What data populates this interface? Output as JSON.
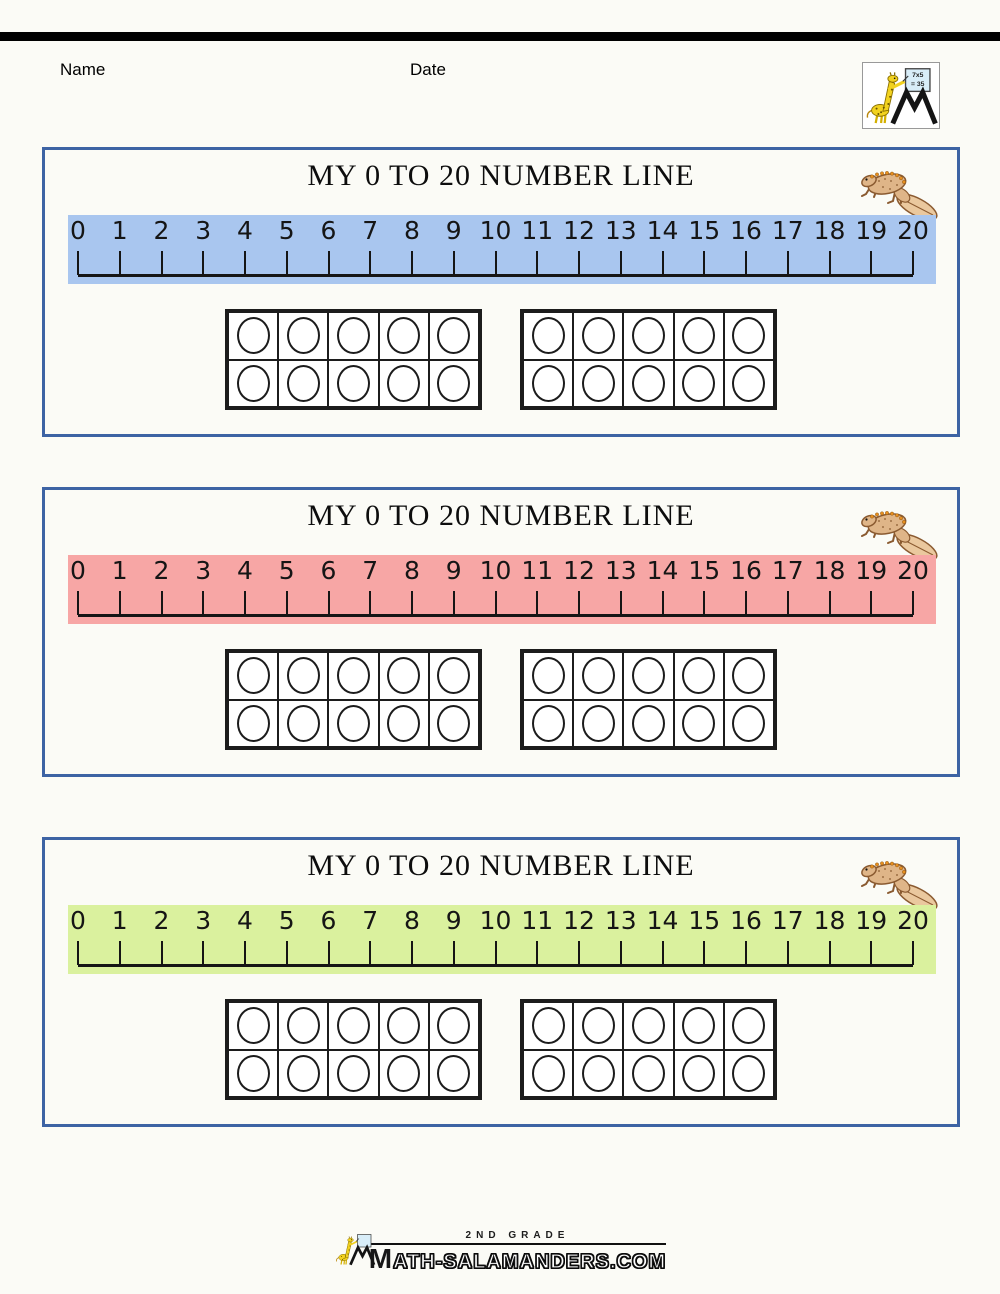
{
  "header": {
    "name_label": "Name",
    "date_label": "Date"
  },
  "logo": {
    "board_line1": "7x5",
    "board_line2": "= 35"
  },
  "panels": [
    {
      "title": "MY 0 TO 20 NUMBER LINE",
      "strip_color": "#a9c6ef"
    },
    {
      "title": "MY 0 TO 20 NUMBER LINE",
      "strip_color": "#f7a6a5"
    },
    {
      "title": "MY 0 TO 20 NUMBER LINE",
      "strip_color": "#daf19e"
    }
  ],
  "numberline": {
    "labels": [
      "0",
      "1",
      "2",
      "3",
      "4",
      "5",
      "6",
      "7",
      "8",
      "9",
      "10",
      "11",
      "12",
      "13",
      "14",
      "15",
      "16",
      "17",
      "18",
      "19",
      "20"
    ],
    "min": 0,
    "max": 20
  },
  "ten_frame": {
    "rows": 2,
    "cols": 5,
    "frames_per_panel": 2,
    "counters_per_frame": 10
  },
  "footer": {
    "grade": "2ND GRADE",
    "site_initial": "M",
    "site_rest": "ATH-SALAMANDERS.COM"
  },
  "colors": {
    "panel_border": "#3d63a4",
    "ink": "#151515"
  }
}
